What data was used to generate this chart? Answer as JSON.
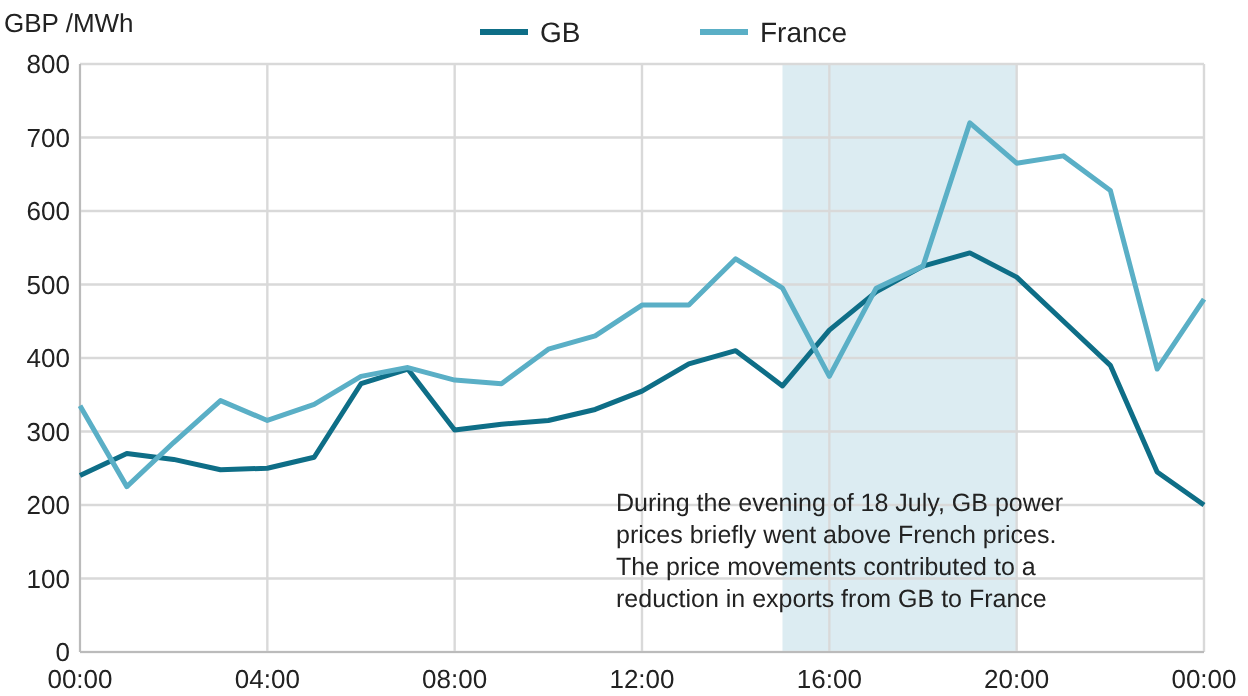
{
  "chart_data": {
    "type": "line",
    "ylabel": "GBP /MWh",
    "x": [
      0,
      1,
      2,
      3,
      4,
      5,
      6,
      7,
      8,
      9,
      10,
      11,
      12,
      13,
      14,
      15,
      16,
      17,
      18,
      19,
      20,
      21,
      22,
      23,
      24
    ],
    "xlim": [
      0,
      24
    ],
    "xticks": [
      {
        "value": 0,
        "label": "00:00"
      },
      {
        "value": 4,
        "label": "04:00"
      },
      {
        "value": 8,
        "label": "08:00"
      },
      {
        "value": 12,
        "label": "12:00"
      },
      {
        "value": 16,
        "label": "16:00"
      },
      {
        "value": 20,
        "label": "20:00"
      },
      {
        "value": 24,
        "label": "00:00"
      }
    ],
    "ylim": [
      0,
      800
    ],
    "yticks": [
      0,
      100,
      200,
      300,
      400,
      500,
      600,
      700,
      800
    ],
    "series": [
      {
        "name": "GB",
        "color": "#0e6e87",
        "values": [
          240,
          270,
          262,
          248,
          250,
          265,
          365,
          385,
          302,
          310,
          315,
          330,
          355,
          392,
          410,
          362,
          438,
          490,
          525,
          543,
          510,
          450,
          390,
          245,
          200
        ]
      },
      {
        "name": "France",
        "color": "#5aafc6",
        "values": [
          335,
          225,
          285,
          342,
          315,
          337,
          375,
          387,
          370,
          365,
          412,
          430,
          472,
          472,
          535,
          495,
          375,
          495,
          525,
          720,
          665,
          675,
          628,
          385,
          480
        ]
      }
    ],
    "bands": [
      {
        "axis": "x",
        "from": 15,
        "to": 20,
        "color": "#dcecf2"
      }
    ],
    "annotations": [
      "During the evening of 18 July, GB power prices briefly went above French prices. The price movements contributed to a reduction in exports from GB to France"
    ],
    "grid": true,
    "legend": "top",
    "line_style": "solid",
    "marker": "none"
  }
}
